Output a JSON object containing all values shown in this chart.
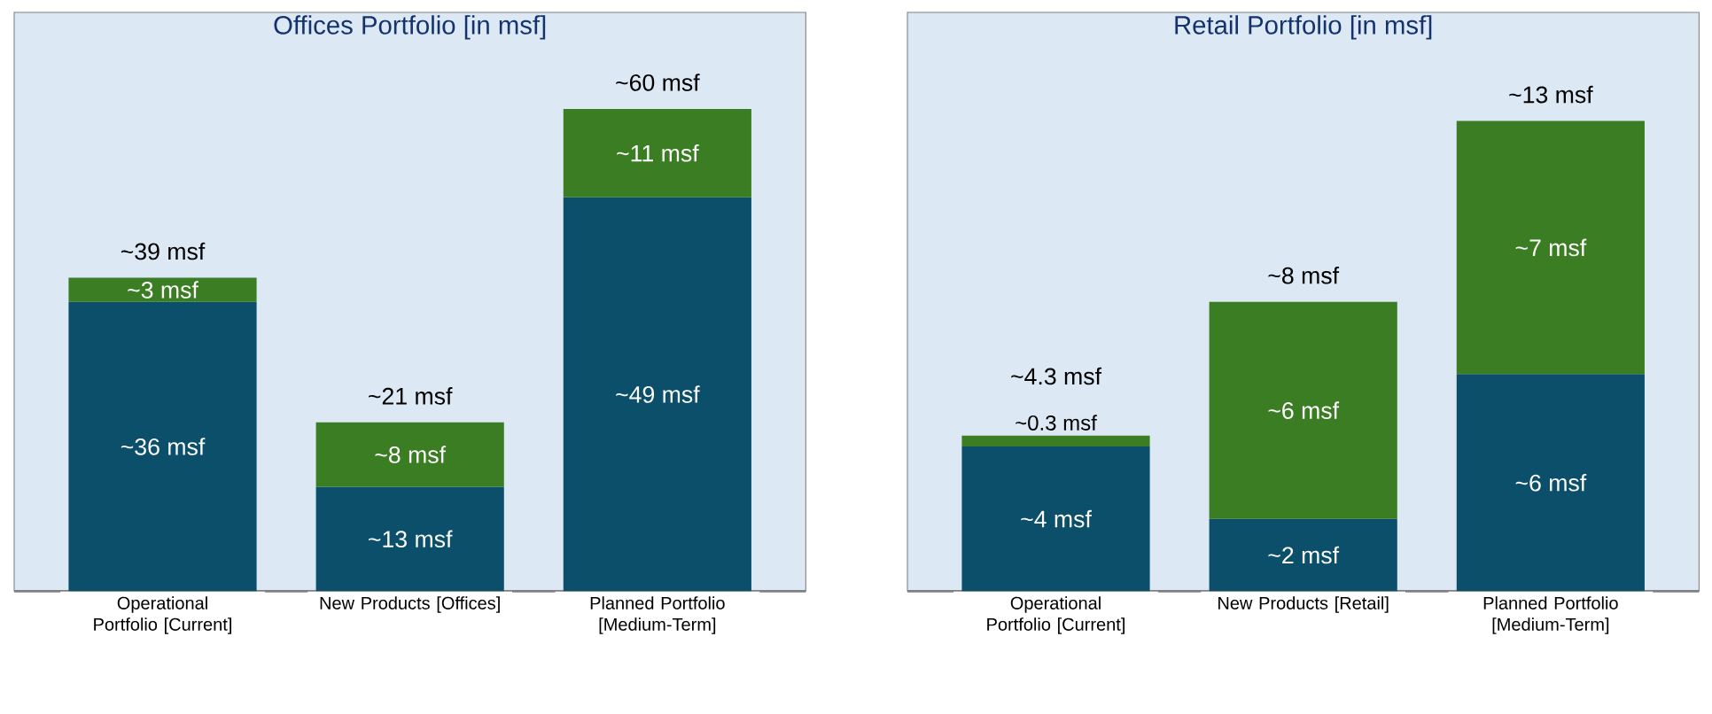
{
  "chart_data": [
    {
      "type": "bar",
      "stacked": true,
      "title": "Offices Portfolio [in msf]",
      "categories": [
        "Operational Portfolio [Current]",
        "New Products [Offices]",
        "Planned Portfolio [Medium-Term]"
      ],
      "ylim": [
        0,
        72
      ],
      "tick_labels": "x",
      "series": [
        {
          "color": "#0b4f6a",
          "values": [
            36,
            13,
            49
          ],
          "value_labels": [
            "~36 msf",
            "~13 msf",
            "~49 msf"
          ]
        },
        {
          "color": "#3b7d23",
          "values": [
            3,
            8,
            11
          ],
          "value_labels": [
            "~3 msf",
            "~8 msf",
            "~11 msf"
          ]
        }
      ],
      "totals": [
        "~39 msf",
        "~21 msf",
        "~60 msf"
      ]
    },
    {
      "type": "bar",
      "stacked": true,
      "title": "Retail Portfolio [in msf]",
      "categories": [
        "Operational Portfolio [Current]",
        "New Products [Retail]",
        "Planned Portfolio [Medium-Term]"
      ],
      "ylim": [
        0,
        16
      ],
      "tick_labels": "x",
      "series": [
        {
          "color": "#0b4f6a",
          "values": [
            4,
            2,
            6
          ],
          "value_labels": [
            "~4 msf",
            "~2 msf",
            "~6 msf"
          ]
        },
        {
          "color": "#3b7d23",
          "values": [
            0.3,
            6,
            7
          ],
          "value_labels": [
            "~0.3 msf",
            "~6 msf",
            "~7 msf"
          ]
        }
      ],
      "totals": [
        "~4.3 msf",
        "~8 msf",
        "~13 msf"
      ]
    }
  ]
}
